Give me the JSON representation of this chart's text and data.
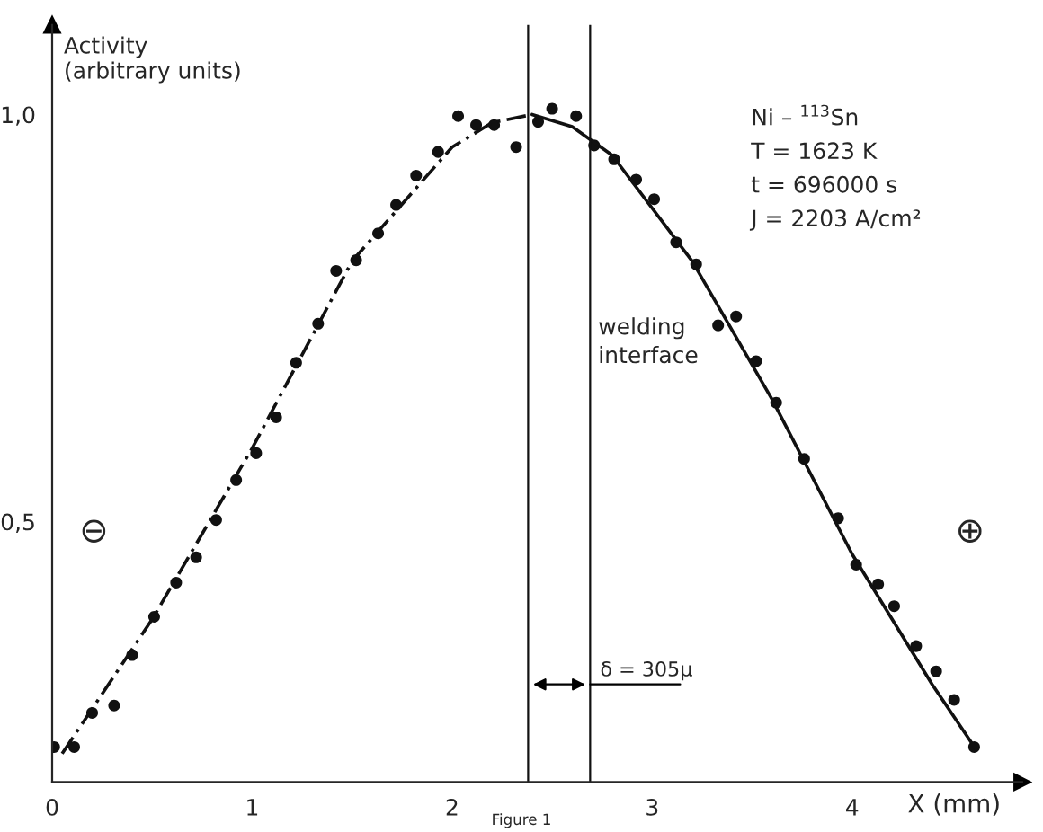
{
  "chart_data": {
    "type": "scatter",
    "xlabel": "X (mm)",
    "ylabel": "Activity\n(arbitrary units)",
    "xlim": [
      0,
      4.85
    ],
    "ylim": [
      0.18,
      1.11
    ],
    "xticks": [
      0,
      1,
      2,
      3,
      4
    ],
    "yticks": [
      {
        "value": 0.5,
        "label": "0,5"
      },
      {
        "value": 1.0,
        "label": "1,0"
      }
    ],
    "grid": false,
    "legend": false,
    "marker": "circle",
    "series": [
      {
        "color": "#111111",
        "x": [
          0.01,
          0.11,
          0.2,
          0.31,
          0.4,
          0.51,
          0.62,
          0.72,
          0.82,
          0.92,
          1.02,
          1.12,
          1.22,
          1.33,
          1.42,
          1.52,
          1.63,
          1.72,
          1.82,
          1.93,
          2.03,
          2.12,
          2.21,
          2.32,
          2.43,
          2.5,
          2.62,
          2.71,
          2.81,
          2.92,
          3.01,
          3.12,
          3.22,
          3.33,
          3.42,
          3.52,
          3.62,
          3.76,
          3.93,
          4.02,
          4.13,
          4.21,
          4.32,
          4.42,
          4.51,
          4.61
        ],
        "values": [
          0.223,
          0.223,
          0.265,
          0.274,
          0.336,
          0.383,
          0.425,
          0.456,
          0.502,
          0.551,
          0.584,
          0.628,
          0.695,
          0.743,
          0.808,
          0.821,
          0.854,
          0.889,
          0.925,
          0.954,
          0.998,
          0.987,
          0.987,
          0.96,
          0.991,
          1.007,
          0.998,
          0.962,
          0.945,
          0.92,
          0.896,
          0.843,
          0.816,
          0.741,
          0.752,
          0.697,
          0.646,
          0.577,
          0.504,
          0.447,
          0.423,
          0.396,
          0.347,
          0.316,
          0.281,
          0.223
        ]
      },
      {
        "type": "line",
        "color": "#111111",
        "line_style": "dashed",
        "marker": "none",
        "x": [
          0.05,
          0.5,
          1.0,
          1.5,
          2.0,
          2.2,
          2.4
        ],
        "values": [
          0.215,
          0.38,
          0.59,
          0.82,
          0.96,
          0.99,
          1.0
        ]
      },
      {
        "type": "line",
        "color": "#111111",
        "line_style": "solid",
        "marker": "none",
        "x": [
          2.4,
          2.6,
          2.8,
          3.2,
          3.6,
          4.0,
          4.4,
          4.62
        ],
        "values": [
          1.0,
          0.985,
          0.95,
          0.82,
          0.65,
          0.46,
          0.3,
          0.22
        ]
      }
    ],
    "ref_lines": [
      {
        "axis": "x",
        "value": 2.38,
        "color": "#111111"
      },
      {
        "axis": "x",
        "value": 2.69,
        "color": "#111111"
      }
    ],
    "annotations": [
      {
        "text": "welding\ninterface",
        "x": 2.69,
        "y": 0.72
      },
      {
        "text": "δ = 305µ",
        "x": 2.69,
        "y": 0.3
      },
      "Ni – $^{113}$Sn\nT = 1623 K\nt = 696000 s\nJ = 2203 A/cm²",
      "⊖",
      "⊕",
      "Figure 1"
    ]
  }
}
